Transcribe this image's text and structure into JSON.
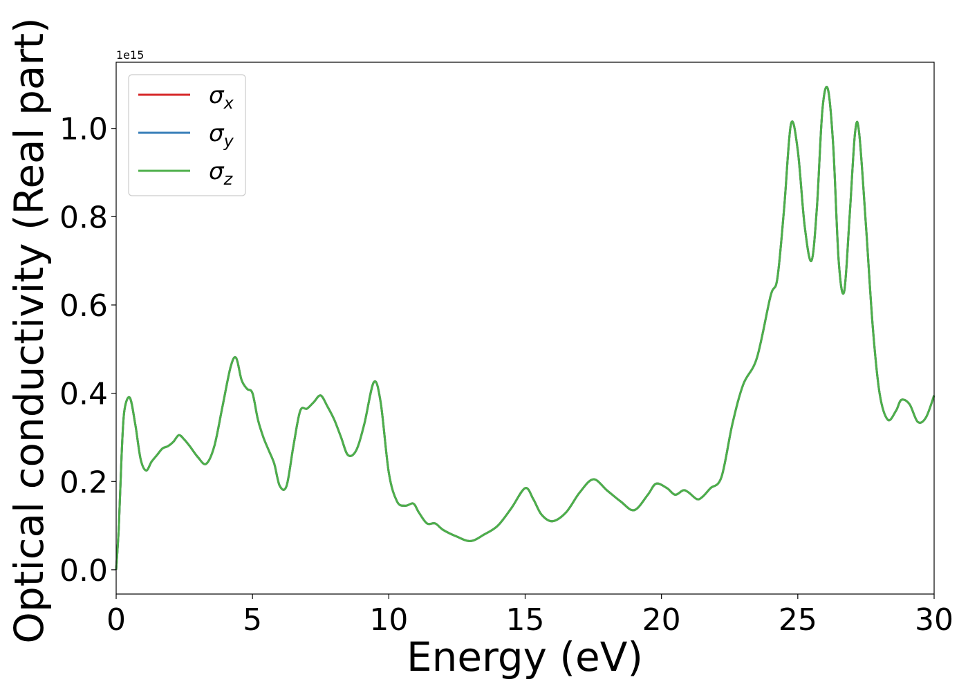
{
  "chart_data": {
    "type": "line",
    "xlabel": "Energy (eV)",
    "ylabel": "Optical conductivity (Real part)",
    "offset_text": "1e15",
    "xlim": [
      0,
      30
    ],
    "ylim": [
      -0.055,
      1.15
    ],
    "y_scale_exponent": 15,
    "xticks": [
      0,
      5,
      10,
      15,
      20,
      25,
      30
    ],
    "xtick_labels": [
      "0",
      "5",
      "10",
      "15",
      "20",
      "25",
      "30"
    ],
    "yticks": [
      0.0,
      0.2,
      0.4,
      0.6,
      0.8,
      1.0
    ],
    "ytick_labels": [
      "0.0",
      "0.2",
      "0.4",
      "0.6",
      "0.8",
      "1.0"
    ],
    "grid": false,
    "legend_position": "top-left",
    "series": [
      {
        "name": "σx",
        "symbol": "σ",
        "subscript": "x",
        "color": "#d62728",
        "x": [
          0,
          0.1,
          0.2,
          0.3,
          0.5,
          0.7,
          0.9,
          1.1,
          1.3,
          1.5,
          1.7,
          1.9,
          2.1,
          2.3,
          2.5,
          2.7,
          3.0,
          3.3,
          3.6,
          3.9,
          4.2,
          4.4,
          4.6,
          4.8,
          5.0,
          5.2,
          5.4,
          5.6,
          5.8,
          6.0,
          6.25,
          6.5,
          6.75,
          7.0,
          7.25,
          7.5,
          7.75,
          8.0,
          8.25,
          8.5,
          8.8,
          9.1,
          9.45,
          9.7,
          10.0,
          10.3,
          10.6,
          10.9,
          11.1,
          11.4,
          11.7,
          12.0,
          12.5,
          13.0,
          13.5,
          14.0,
          14.5,
          15.0,
          15.3,
          15.6,
          16.0,
          16.5,
          17.0,
          17.5,
          18.0,
          18.5,
          19.0,
          19.5,
          19.8,
          20.2,
          20.5,
          20.8,
          21.0,
          21.3,
          21.5,
          21.8,
          22.2,
          22.6,
          23.0,
          23.5,
          24.0,
          24.25,
          24.5,
          24.75,
          25.0,
          25.25,
          25.5,
          25.7,
          25.9,
          26.1,
          26.3,
          26.5,
          26.7,
          26.9,
          27.1,
          27.25,
          27.5,
          27.75,
          28.0,
          28.3,
          28.6,
          28.8,
          29.1,
          29.4,
          29.7,
          30.0
        ],
        "y": [
          0.0,
          0.1,
          0.26,
          0.36,
          0.39,
          0.33,
          0.25,
          0.225,
          0.245,
          0.26,
          0.275,
          0.28,
          0.29,
          0.305,
          0.295,
          0.28,
          0.255,
          0.24,
          0.28,
          0.37,
          0.46,
          0.48,
          0.43,
          0.41,
          0.4,
          0.34,
          0.3,
          0.27,
          0.24,
          0.19,
          0.19,
          0.28,
          0.36,
          0.365,
          0.38,
          0.395,
          0.37,
          0.34,
          0.3,
          0.26,
          0.27,
          0.33,
          0.425,
          0.38,
          0.22,
          0.155,
          0.145,
          0.15,
          0.13,
          0.105,
          0.105,
          0.09,
          0.075,
          0.065,
          0.08,
          0.1,
          0.14,
          0.185,
          0.16,
          0.125,
          0.11,
          0.13,
          0.175,
          0.205,
          0.18,
          0.155,
          0.135,
          0.17,
          0.195,
          0.185,
          0.17,
          0.18,
          0.175,
          0.16,
          0.165,
          0.185,
          0.21,
          0.33,
          0.42,
          0.48,
          0.62,
          0.66,
          0.82,
          1.01,
          0.95,
          0.78,
          0.7,
          0.82,
          1.04,
          1.09,
          0.96,
          0.7,
          0.63,
          0.8,
          0.99,
          0.99,
          0.78,
          0.55,
          0.4,
          0.34,
          0.36,
          0.385,
          0.375,
          0.335,
          0.345,
          0.395
        ]
      },
      {
        "name": "σy",
        "symbol": "σ",
        "subscript": "y",
        "color": "#377eb8",
        "x": [
          0,
          0.1,
          0.2,
          0.3,
          0.5,
          0.7,
          0.9,
          1.1,
          1.3,
          1.5,
          1.7,
          1.9,
          2.1,
          2.3,
          2.5,
          2.7,
          3.0,
          3.3,
          3.6,
          3.9,
          4.2,
          4.4,
          4.6,
          4.8,
          5.0,
          5.2,
          5.4,
          5.6,
          5.8,
          6.0,
          6.25,
          6.5,
          6.75,
          7.0,
          7.25,
          7.5,
          7.75,
          8.0,
          8.25,
          8.5,
          8.8,
          9.1,
          9.45,
          9.7,
          10.0,
          10.3,
          10.6,
          10.9,
          11.1,
          11.4,
          11.7,
          12.0,
          12.5,
          13.0,
          13.5,
          14.0,
          14.5,
          15.0,
          15.3,
          15.6,
          16.0,
          16.5,
          17.0,
          17.5,
          18.0,
          18.5,
          19.0,
          19.5,
          19.8,
          20.2,
          20.5,
          20.8,
          21.0,
          21.3,
          21.5,
          21.8,
          22.2,
          22.6,
          23.0,
          23.5,
          24.0,
          24.25,
          24.5,
          24.75,
          25.0,
          25.25,
          25.5,
          25.7,
          25.9,
          26.1,
          26.3,
          26.5,
          26.7,
          26.9,
          27.1,
          27.25,
          27.5,
          27.75,
          28.0,
          28.3,
          28.6,
          28.8,
          29.1,
          29.4,
          29.7,
          30.0
        ],
        "y": [
          0.0,
          0.1,
          0.26,
          0.36,
          0.39,
          0.33,
          0.25,
          0.225,
          0.245,
          0.26,
          0.275,
          0.28,
          0.29,
          0.305,
          0.295,
          0.28,
          0.255,
          0.24,
          0.28,
          0.37,
          0.46,
          0.48,
          0.43,
          0.41,
          0.4,
          0.34,
          0.3,
          0.27,
          0.24,
          0.19,
          0.19,
          0.28,
          0.36,
          0.365,
          0.38,
          0.395,
          0.37,
          0.34,
          0.3,
          0.26,
          0.27,
          0.33,
          0.425,
          0.38,
          0.22,
          0.155,
          0.145,
          0.15,
          0.13,
          0.105,
          0.105,
          0.09,
          0.075,
          0.065,
          0.08,
          0.1,
          0.14,
          0.185,
          0.16,
          0.125,
          0.11,
          0.13,
          0.175,
          0.205,
          0.18,
          0.155,
          0.135,
          0.17,
          0.195,
          0.185,
          0.17,
          0.18,
          0.175,
          0.16,
          0.165,
          0.185,
          0.21,
          0.33,
          0.42,
          0.48,
          0.62,
          0.66,
          0.82,
          1.01,
          0.95,
          0.78,
          0.7,
          0.82,
          1.04,
          1.09,
          0.96,
          0.7,
          0.63,
          0.8,
          0.99,
          0.99,
          0.78,
          0.55,
          0.4,
          0.34,
          0.36,
          0.385,
          0.375,
          0.335,
          0.345,
          0.395
        ]
      },
      {
        "name": "σz",
        "symbol": "σ",
        "subscript": "z",
        "color": "#4daf4a",
        "x": [
          0,
          0.1,
          0.2,
          0.3,
          0.5,
          0.7,
          0.9,
          1.1,
          1.3,
          1.5,
          1.7,
          1.9,
          2.1,
          2.3,
          2.5,
          2.7,
          3.0,
          3.3,
          3.6,
          3.9,
          4.2,
          4.4,
          4.6,
          4.8,
          5.0,
          5.2,
          5.4,
          5.6,
          5.8,
          6.0,
          6.25,
          6.5,
          6.75,
          7.0,
          7.25,
          7.5,
          7.75,
          8.0,
          8.25,
          8.5,
          8.8,
          9.1,
          9.45,
          9.7,
          10.0,
          10.3,
          10.6,
          10.9,
          11.1,
          11.4,
          11.7,
          12.0,
          12.5,
          13.0,
          13.5,
          14.0,
          14.5,
          15.0,
          15.3,
          15.6,
          16.0,
          16.5,
          17.0,
          17.5,
          18.0,
          18.5,
          19.0,
          19.5,
          19.8,
          20.2,
          20.5,
          20.8,
          21.0,
          21.3,
          21.5,
          21.8,
          22.2,
          22.6,
          23.0,
          23.5,
          24.0,
          24.25,
          24.5,
          24.75,
          25.0,
          25.25,
          25.5,
          25.7,
          25.9,
          26.1,
          26.3,
          26.5,
          26.7,
          26.9,
          27.1,
          27.25,
          27.5,
          27.75,
          28.0,
          28.3,
          28.6,
          28.8,
          29.1,
          29.4,
          29.7,
          30.0
        ],
        "y": [
          0.0,
          0.1,
          0.26,
          0.36,
          0.39,
          0.33,
          0.25,
          0.225,
          0.245,
          0.26,
          0.275,
          0.28,
          0.29,
          0.305,
          0.295,
          0.28,
          0.255,
          0.24,
          0.28,
          0.37,
          0.46,
          0.48,
          0.43,
          0.41,
          0.4,
          0.34,
          0.3,
          0.27,
          0.24,
          0.19,
          0.19,
          0.28,
          0.36,
          0.365,
          0.38,
          0.395,
          0.37,
          0.34,
          0.3,
          0.26,
          0.27,
          0.33,
          0.425,
          0.38,
          0.22,
          0.155,
          0.145,
          0.15,
          0.13,
          0.105,
          0.105,
          0.09,
          0.075,
          0.065,
          0.08,
          0.1,
          0.14,
          0.185,
          0.16,
          0.125,
          0.11,
          0.13,
          0.175,
          0.205,
          0.18,
          0.155,
          0.135,
          0.17,
          0.195,
          0.185,
          0.17,
          0.18,
          0.175,
          0.16,
          0.165,
          0.185,
          0.21,
          0.33,
          0.42,
          0.48,
          0.62,
          0.66,
          0.82,
          1.01,
          0.95,
          0.78,
          0.7,
          0.82,
          1.04,
          1.09,
          0.96,
          0.7,
          0.63,
          0.8,
          0.99,
          0.99,
          0.78,
          0.55,
          0.4,
          0.34,
          0.36,
          0.385,
          0.375,
          0.335,
          0.345,
          0.395
        ]
      }
    ]
  }
}
